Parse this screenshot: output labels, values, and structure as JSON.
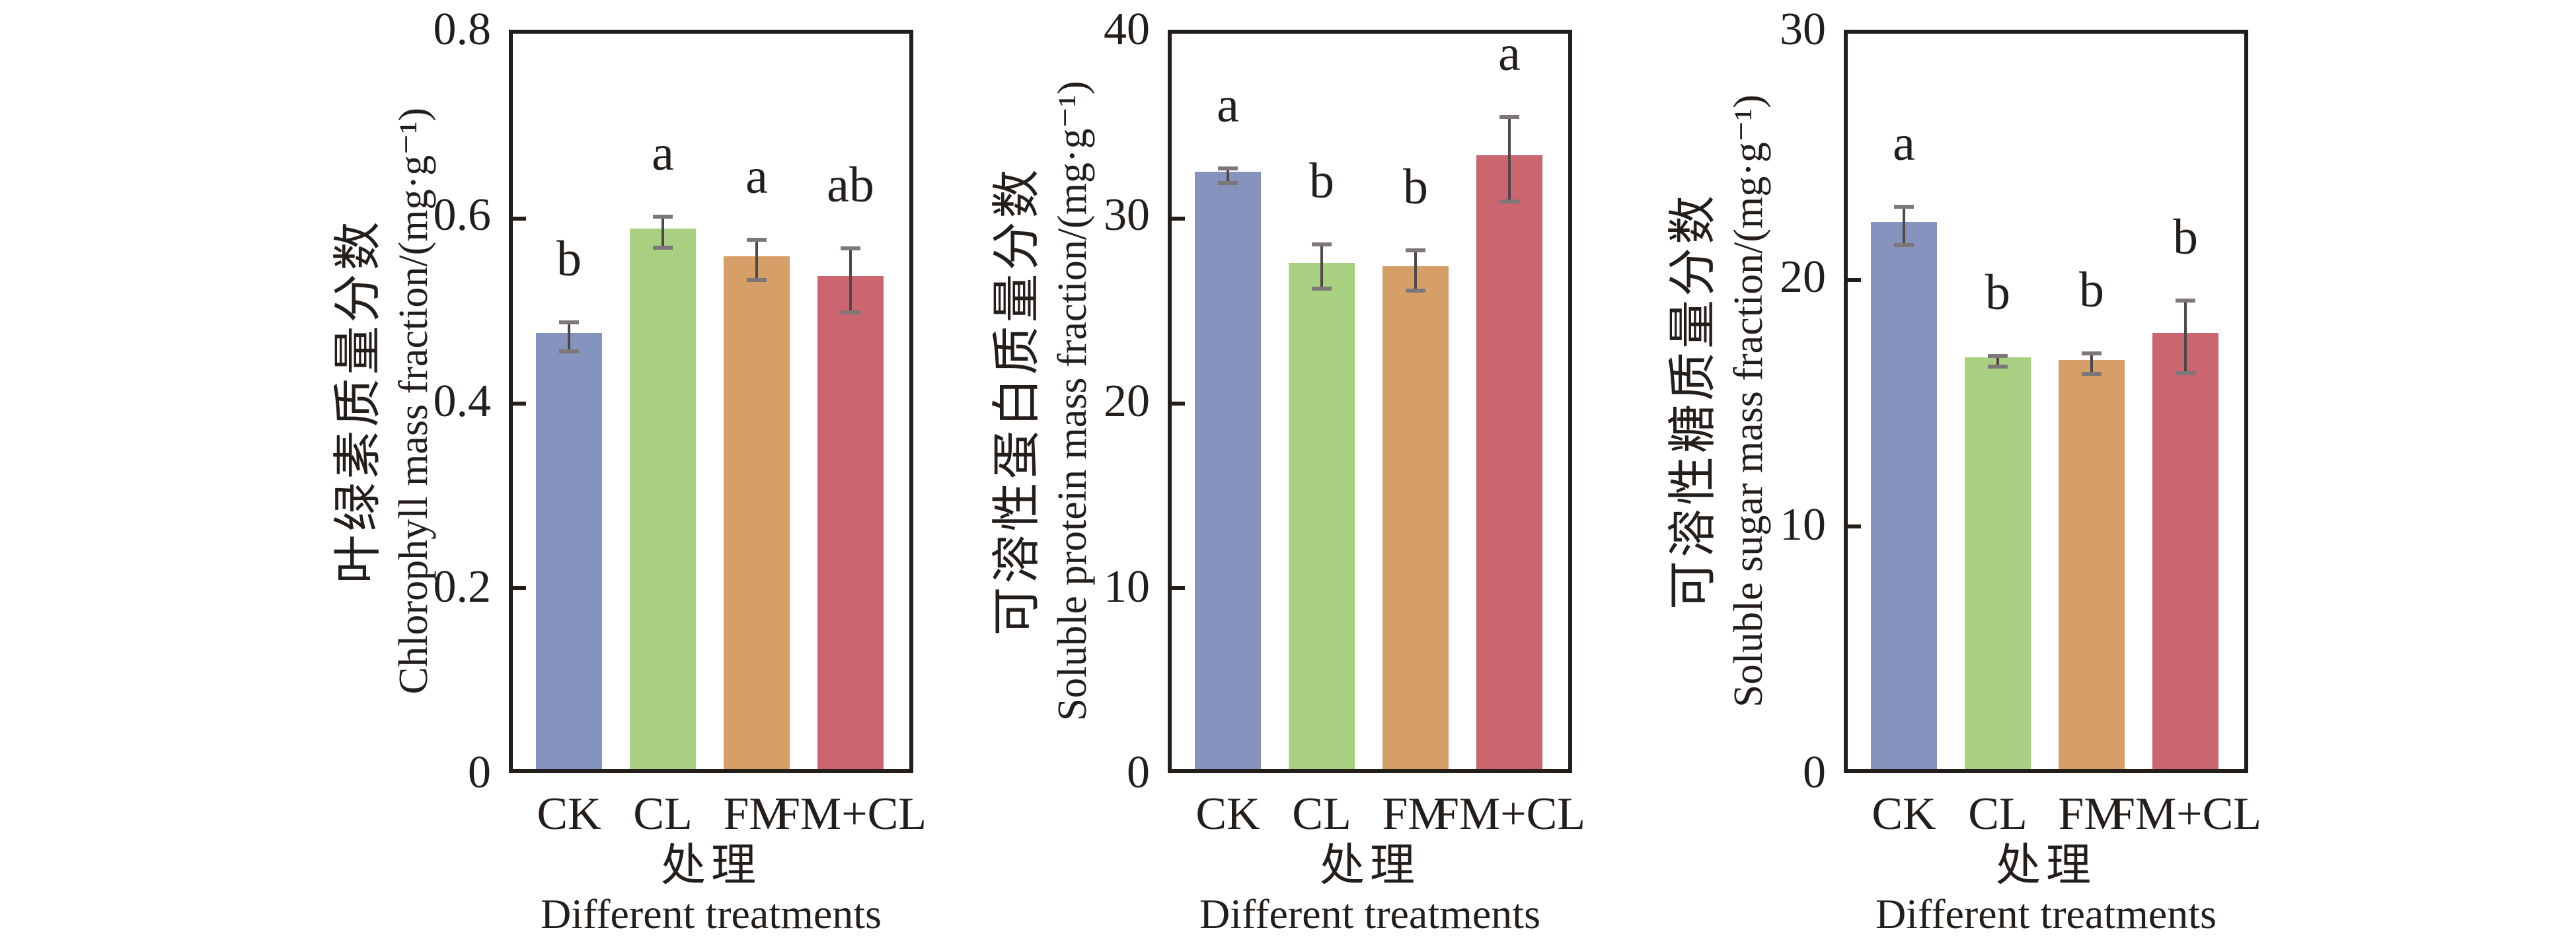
{
  "figure": {
    "categories": [
      "CK",
      "CL",
      "FM",
      "FM+CL"
    ],
    "xlabel_zh": "处理",
    "xlabel_en": "Different treatments",
    "colors": {
      "bars": [
        "#8793bf",
        "#a9cf81",
        "#d59f67",
        "#cb6570"
      ],
      "axis": "#241e1b",
      "error_line": "#4d4748",
      "error_cap": "#7e7778",
      "text": "#241e1b",
      "background": "#ffffff"
    }
  },
  "chart_data": [
    {
      "type": "bar",
      "ylabel_zh": "叶绿素质量分数",
      "ylabel_en": "Chlorophyll mass fraction/(mg·g⁻¹)",
      "xlabel_zh": "处理",
      "xlabel_en": "Different treatments",
      "categories": [
        "CK",
        "CL",
        "FM",
        "FM+CL"
      ],
      "values": [
        0.472,
        0.585,
        0.555,
        0.533
      ],
      "errors": [
        0.018,
        0.019,
        0.024,
        0.037
      ],
      "sig_letters": [
        "b",
        "a",
        "a",
        "ab"
      ],
      "ylim": [
        0,
        0.8
      ],
      "yticks": [
        0,
        0.2,
        0.4,
        0.6,
        0.8
      ],
      "ytick_labels": [
        "0",
        "0.2",
        "0.4",
        "0.6",
        "0.8"
      ],
      "grid": "off",
      "legend": "none"
    },
    {
      "type": "bar",
      "ylabel_zh": "可溶性蛋白质量分数",
      "ylabel_en": "Soluble protein mass fraction/(mg·g⁻¹)",
      "xlabel_zh": "处理",
      "xlabel_en": "Different treatments",
      "categories": [
        "CK",
        "CL",
        "FM",
        "FM+CL"
      ],
      "values": [
        32.3,
        27.4,
        27.2,
        33.2
      ],
      "errors": [
        0.5,
        1.3,
        1.2,
        2.4
      ],
      "sig_letters": [
        "a",
        "b",
        "b",
        "a"
      ],
      "ylim": [
        0,
        40
      ],
      "yticks": [
        0,
        10,
        20,
        30,
        40
      ],
      "ytick_labels": [
        "0",
        "10",
        "20",
        "30",
        "40"
      ],
      "grid": "off",
      "legend": "none"
    },
    {
      "type": "bar",
      "ylabel_zh": "可溶性糖质量分数",
      "ylabel_en": "Soluble sugar mass fraction/(mg·g⁻¹)",
      "xlabel_zh": "处理",
      "xlabel_en": "Different treatments",
      "categories": [
        "CK",
        "CL",
        "FM",
        "FM+CL"
      ],
      "values": [
        22.2,
        16.7,
        16.6,
        17.7
      ],
      "errors": [
        0.85,
        0.3,
        0.5,
        1.55
      ],
      "sig_letters": [
        "a",
        "b",
        "b",
        "b"
      ],
      "ylim": [
        0,
        30
      ],
      "yticks": [
        0,
        10,
        20,
        30
      ],
      "ytick_labels": [
        "0",
        "10",
        "20",
        "30"
      ],
      "grid": "off",
      "legend": "none"
    }
  ]
}
